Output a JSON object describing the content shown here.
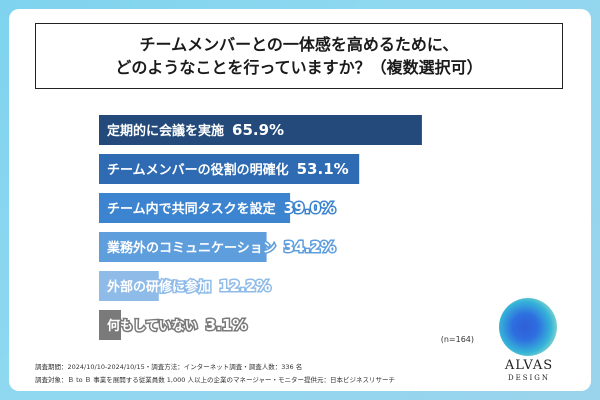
{
  "title": {
    "line1": "チームメンバーとの一体感を高めるために、",
    "line2": "どのようなことを行っていますか？（複数選択可）"
  },
  "chart_data": {
    "type": "bar",
    "orientation": "horizontal",
    "categories": [
      "定期的に会議を実施",
      "チームメンバーの役割の明確化",
      "チーム内で共同タスクを設定",
      "業務外のコミュニケーション",
      "外部の研修に参加",
      "何もしていない"
    ],
    "values": [
      65.9,
      53.1,
      39.0,
      34.2,
      12.2,
      3.1
    ],
    "value_labels": [
      "65.9%",
      "53.1%",
      "39.0%",
      "34.2%",
      "12.2%",
      "3.1%"
    ],
    "colors": [
      "#234a7a",
      "#2f6bb3",
      "#3c84cf",
      "#5f9edc",
      "#8fbbe8",
      "#7a7a7a"
    ],
    "xlim": [
      0,
      100
    ],
    "grid": false,
    "legend": "none"
  },
  "note": "(n=164)",
  "footer": {
    "line1": "調査期間：2024/10/10-2024/10/15・調査方法：インターネット調査・調査人数：336 名",
    "line2": "調査対象：Ｂ to Ｂ 事業を展開する従業員数 1,000 人以上の企業のマネージャー・モニター提供元：日本ビジネスリサーチ"
  },
  "logo": {
    "name": "ALVAS",
    "sub": "DESIGN"
  }
}
